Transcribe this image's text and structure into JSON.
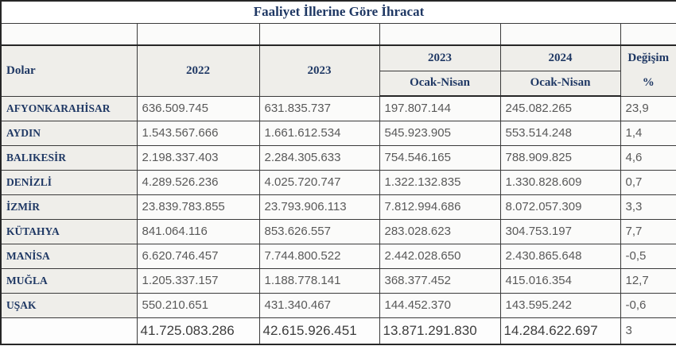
{
  "title": "Faaliyet İllerine Göre İhracat",
  "colors": {
    "heading_text": "#1f3864",
    "number_text": "#595959",
    "total_text": "#3d3d3d",
    "header_bg": "#efeeea",
    "cell_bg": "#fbfbfa",
    "border": "#3a3a3a"
  },
  "table": {
    "corner_label": "Dolar",
    "col_2022": "2022",
    "col_2023": "2023",
    "sub_year_2023": "2023",
    "sub_year_2024": "2024",
    "sub_period_2023": "Ocak-Nisan",
    "sub_period_2024": "Ocak-Nisan",
    "change_line1": "Değişim",
    "change_line2": "%",
    "rows": [
      {
        "name": "AFYONKARAHİSAR",
        "y2022": "636.509.745",
        "y2023": "631.835.737",
        "p2023": "197.807.144",
        "p2024": "245.082.265",
        "change": "23,9"
      },
      {
        "name": "AYDIN",
        "y2022": "1.543.567.666",
        "y2023": "1.661.612.534",
        "p2023": "545.923.905",
        "p2024": "553.514.248",
        "change": "1,4"
      },
      {
        "name": "BALIKESİR",
        "y2022": "2.198.337.403",
        "y2023": "2.284.305.633",
        "p2023": "754.546.165",
        "p2024": "788.909.825",
        "change": "4,6"
      },
      {
        "name": "DENİZLİ",
        "y2022": "4.289.526.236",
        "y2023": "4.025.720.747",
        "p2023": "1.322.132.835",
        "p2024": "1.330.828.609",
        "change": "0,7"
      },
      {
        "name": "İZMİR",
        "y2022": "23.839.783.855",
        "y2023": "23.793.906.113",
        "p2023": "7.812.994.686",
        "p2024": "8.072.057.309",
        "change": "3,3"
      },
      {
        "name": "KÜTAHYA",
        "y2022": "841.064.116",
        "y2023": "853.626.557",
        "p2023": "283.028.623",
        "p2024": "304.753.197",
        "change": "7,7"
      },
      {
        "name": "MANİSA",
        "y2022": "6.620.746.457",
        "y2023": "7.744.800.522",
        "p2023": "2.442.028.650",
        "p2024": "2.430.865.648",
        "change": "-0,5"
      },
      {
        "name": "MUĞLA",
        "y2022": "1.205.337.157",
        "y2023": "1.188.778.141",
        "p2023": "368.377.452",
        "p2024": "415.016.354",
        "change": "12,7"
      },
      {
        "name": "UŞAK",
        "y2022": "550.210.651",
        "y2023": "431.340.467",
        "p2023": "144.452.370",
        "p2024": "143.595.242",
        "change": "-0,6"
      }
    ],
    "total": {
      "name": "",
      "y2022": "41.725.083.286",
      "y2023": "42.615.926.451",
      "p2023": "13.871.291.830",
      "p2024": "14.284.622.697",
      "change": "3"
    }
  },
  "chart_data": {
    "type": "table",
    "title": "Faaliyet İllerine Göre İhracat",
    "unit": "Dolar",
    "columns": [
      "Dolar",
      "2022",
      "2023",
      "2023 Ocak-Nisan",
      "2024 Ocak-Nisan",
      "Değişim %"
    ],
    "rows": [
      [
        "AFYONKARAHİSAR",
        "636.509.745",
        "631.835.737",
        "197.807.144",
        "245.082.265",
        "23,9"
      ],
      [
        "AYDIN",
        "1.543.567.666",
        "1.661.612.534",
        "545.923.905",
        "553.514.248",
        "1,4"
      ],
      [
        "BALIKESİR",
        "2.198.337.403",
        "2.284.305.633",
        "754.546.165",
        "788.909.825",
        "4,6"
      ],
      [
        "DENİZLİ",
        "4.289.526.236",
        "4.025.720.747",
        "1.322.132.835",
        "1.330.828.609",
        "0,7"
      ],
      [
        "İZMİR",
        "23.839.783.855",
        "23.793.906.113",
        "7.812.994.686",
        "8.072.057.309",
        "3,3"
      ],
      [
        "KÜTAHYA",
        "841.064.116",
        "853.626.557",
        "283.028.623",
        "304.753.197",
        "7,7"
      ],
      [
        "MANİSA",
        "6.620.746.457",
        "7.744.800.522",
        "2.442.028.650",
        "2.430.865.648",
        "-0,5"
      ],
      [
        "MUĞLA",
        "1.205.337.157",
        "1.188.778.141",
        "368.377.452",
        "415.016.354",
        "12,7"
      ],
      [
        "UŞAK",
        "550.210.651",
        "431.340.467",
        "144.452.370",
        "143.595.242",
        "-0,6"
      ],
      [
        "",
        "41.725.083.286",
        "42.615.926.451",
        "13.871.291.830",
        "14.284.622.697",
        "3"
      ]
    ]
  }
}
